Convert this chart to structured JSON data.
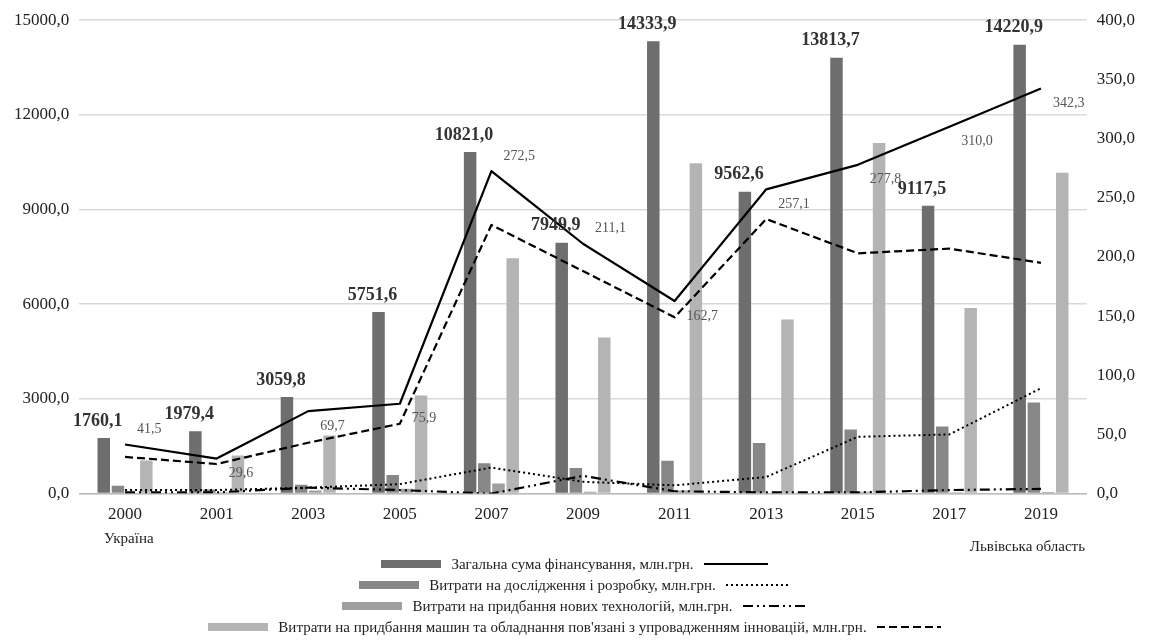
{
  "chart_data": {
    "type": "bar",
    "categories": [
      "2000",
      "2001",
      "2003",
      "2005",
      "2007",
      "2009",
      "2011",
      "2013",
      "2015",
      "2017",
      "2019"
    ],
    "series": [
      {
        "name": "Загальна сума фінансування, млн.грн.",
        "color": "#6e6e6e",
        "values": [
          1760.1,
          1979.4,
          3059.8,
          5751.6,
          10821.0,
          7949.9,
          14333.9,
          9562.6,
          13813.7,
          9117.5,
          14220.9
        ],
        "value_labels": [
          "1760,1",
          "1979,4",
          "3059,8",
          "5751,6",
          "10821,0",
          "7949,9",
          "14333,9",
          "9562,6",
          "13813,7",
          "9117,5",
          "14220,9"
        ]
      },
      {
        "name": "Витрати на дослідження і розробку, млн.грн.",
        "color": "#878787",
        "values": [
          250,
          130,
          280,
          590,
          960,
          810,
          1040,
          1600,
          2030,
          2130,
          2890
        ]
      },
      {
        "name": "Витрати на придбання нових технологій, млн.грн.",
        "color": "#9f9f9f",
        "values": [
          30,
          40,
          100,
          150,
          320,
          60,
          100,
          null,
          60,
          40,
          50
        ]
      },
      {
        "name": "Витрати на придбання машин та обладнання пов'язані з упровадженням інновацій, млн.грн.",
        "color": "#b4b4b4",
        "values": [
          1050,
          1210,
          1840,
          3110,
          7460,
          4950,
          10470,
          5520,
          11110,
          5880,
          10170
        ]
      },
      {
        "type": "line",
        "axis": "y2",
        "line_style": "solid",
        "color": "#000000",
        "values": [
          41.5,
          29.6,
          69.7,
          75.9,
          272.5,
          211.1,
          162.7,
          257.1,
          277.8,
          310.0,
          342.3
        ],
        "value_labels": [
          "41,5",
          "29,6",
          "69,7",
          "75,9",
          "272,5",
          "211,1",
          "162,7",
          "257,1",
          "277,8",
          "310,0",
          "342,3"
        ]
      },
      {
        "type": "line",
        "axis": "y2",
        "line_style": "dotted",
        "color": "#000000",
        "values": [
          3,
          3,
          5,
          8,
          22,
          10,
          7,
          14,
          48,
          50,
          89
        ]
      },
      {
        "type": "line",
        "axis": "y2",
        "line_style": "dashdot",
        "color": "#000000",
        "values": [
          1,
          1,
          5,
          3,
          0,
          15,
          2,
          1,
          1,
          3,
          4
        ]
      },
      {
        "type": "line",
        "axis": "y2",
        "line_style": "dashed",
        "color": "#000000",
        "values": [
          31,
          25,
          43,
          59,
          227,
          188,
          149,
          232,
          203,
          207,
          195
        ]
      }
    ],
    "ylim": [
      0,
      15000
    ],
    "yticks": [
      {
        "value": 0,
        "label": "0,0"
      },
      {
        "value": 3000,
        "label": "3000,0"
      },
      {
        "value": 6000,
        "label": "6000,0"
      },
      {
        "value": 9000,
        "label": "9000,0"
      },
      {
        "value": 12000,
        "label": "12000,0"
      },
      {
        "value": 15000,
        "label": "15000,0"
      }
    ],
    "y2lim": [
      0,
      400
    ],
    "y2ticks": [
      {
        "value": 0,
        "label": "0,0"
      },
      {
        "value": 50,
        "label": "50,0"
      },
      {
        "value": 100,
        "label": "100,0"
      },
      {
        "value": 150,
        "label": "150,0"
      },
      {
        "value": 200,
        "label": "200,0"
      },
      {
        "value": 250,
        "label": "250,0"
      },
      {
        "value": 300,
        "label": "300,0"
      },
      {
        "value": 350,
        "label": "350,0"
      },
      {
        "value": 400,
        "label": "400,0"
      }
    ],
    "grid": "y",
    "legend": "bottom",
    "marker": "none",
    "annotations": [
      "Україна",
      "Львівська область"
    ]
  }
}
